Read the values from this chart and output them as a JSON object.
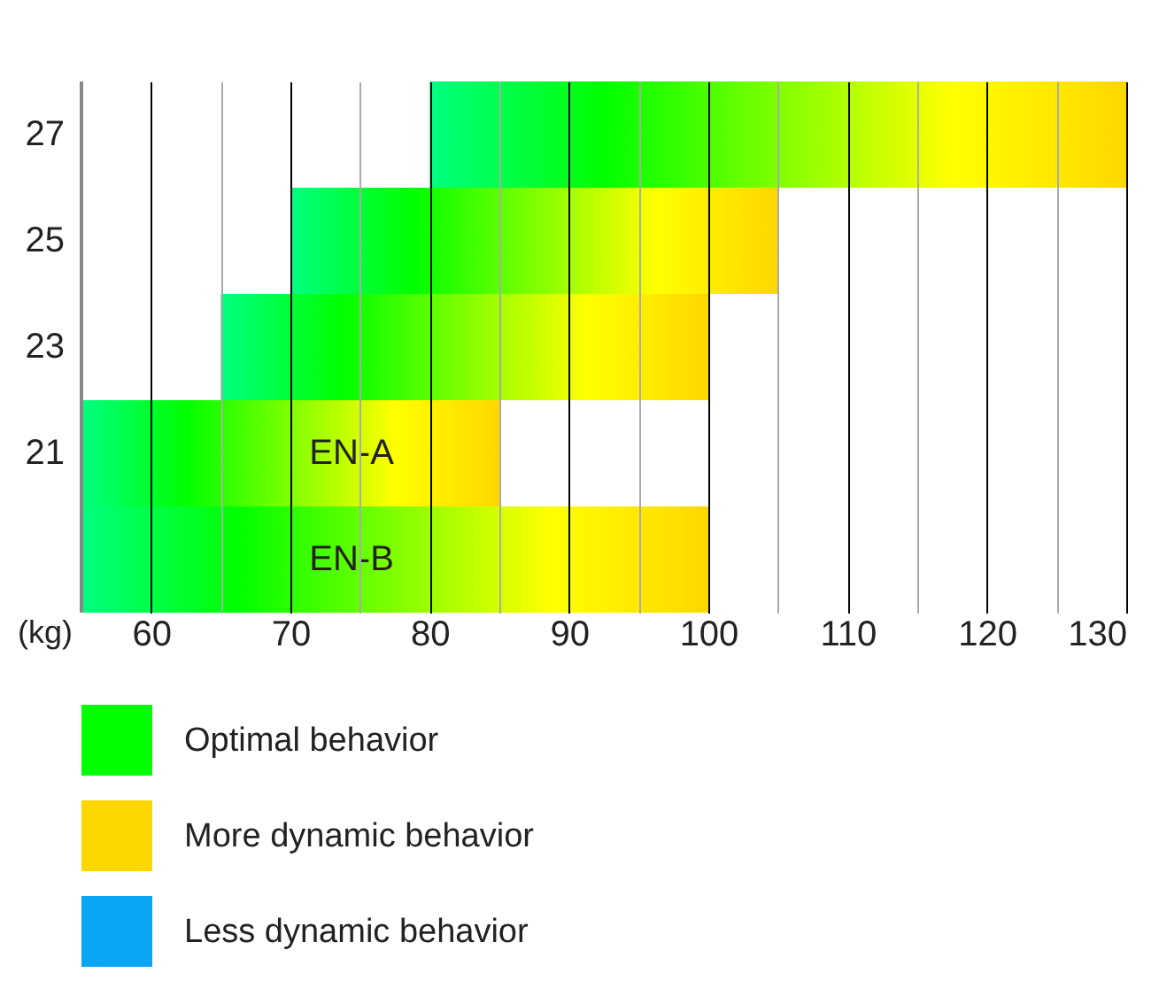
{
  "chart_data": {
    "type": "bar",
    "orientation": "horizontal",
    "xlabel": "(kg)",
    "categories": [
      "27",
      "25",
      "23",
      "21",
      null
    ],
    "series": [
      {
        "name": "Optimal behavior",
        "color": "#00ff00",
        "base": [
          80,
          70,
          65,
          55,
          55
        ],
        "values": [
          50,
          35,
          35,
          30,
          45
        ]
      },
      {
        "name": "More dynamic behavior",
        "color": "#ffd700",
        "values": [
          null,
          null,
          null,
          null,
          null
        ]
      },
      {
        "name": "Less dynamic behavior",
        "color": "#0aa5f5",
        "values": [
          null,
          null,
          null,
          null,
          null
        ]
      }
    ],
    "xlim": [
      55,
      130
    ],
    "xticks": [
      60,
      {
        "value": 65,
        "label": null
      },
      70,
      {
        "value": 75,
        "label": null
      },
      80,
      {
        "value": 85,
        "label": null
      },
      90,
      {
        "value": 95,
        "label": null
      },
      100,
      {
        "value": 105,
        "label": null
      },
      110,
      {
        "value": 115,
        "label": null
      },
      120,
      {
        "value": 125,
        "label": null
      },
      130
    ],
    "annotations": [
      "EN-A",
      "EN-B"
    ],
    "grid": "x",
    "legend": "bottom"
  }
}
